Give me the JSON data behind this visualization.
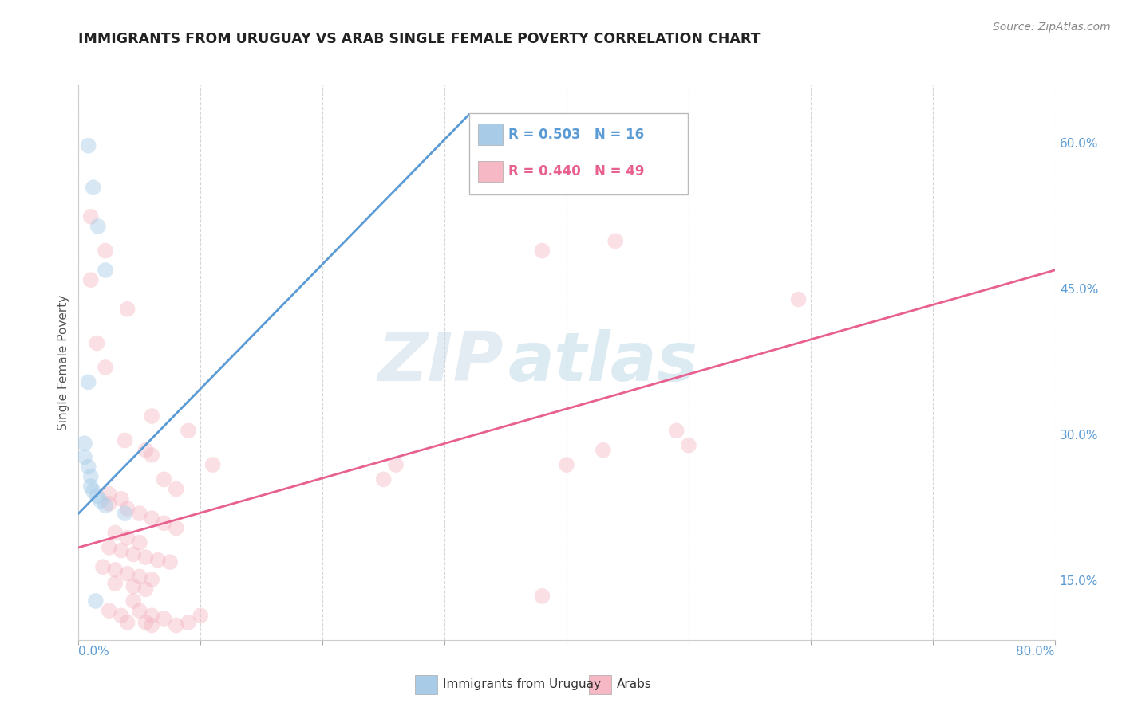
{
  "title": "IMMIGRANTS FROM URUGUAY VS ARAB SINGLE FEMALE POVERTY CORRELATION CHART",
  "source": "Source: ZipAtlas.com",
  "ylabel": "Single Female Poverty",
  "right_yticks": [
    "15.0%",
    "30.0%",
    "45.0%",
    "60.0%"
  ],
  "right_ytick_vals": [
    0.15,
    0.3,
    0.45,
    0.6
  ],
  "xlim": [
    0.0,
    0.8
  ],
  "ylim": [
    0.09,
    0.66
  ],
  "legend": {
    "series1_label": "Immigrants from Uruguay",
    "series1_R": "R = 0.503",
    "series1_N": "N = 16",
    "series2_label": "Arabs",
    "series2_R": "R = 0.440",
    "series2_N": "N = 49"
  },
  "watermark_zip": "ZIP",
  "watermark_atlas": "atlas",
  "uruguay_scatter": [
    [
      0.008,
      0.598
    ],
    [
      0.012,
      0.555
    ],
    [
      0.016,
      0.515
    ],
    [
      0.022,
      0.47
    ],
    [
      0.008,
      0.355
    ],
    [
      0.005,
      0.292
    ],
    [
      0.005,
      0.278
    ],
    [
      0.008,
      0.268
    ],
    [
      0.01,
      0.258
    ],
    [
      0.01,
      0.248
    ],
    [
      0.012,
      0.243
    ],
    [
      0.015,
      0.238
    ],
    [
      0.018,
      0.233
    ],
    [
      0.022,
      0.228
    ],
    [
      0.038,
      0.22
    ],
    [
      0.014,
      0.13
    ]
  ],
  "arab_scatter": [
    [
      0.01,
      0.525
    ],
    [
      0.022,
      0.49
    ],
    [
      0.01,
      0.46
    ],
    [
      0.04,
      0.43
    ],
    [
      0.015,
      0.395
    ],
    [
      0.022,
      0.37
    ],
    [
      0.06,
      0.32
    ],
    [
      0.09,
      0.305
    ],
    [
      0.038,
      0.295
    ],
    [
      0.055,
      0.285
    ],
    [
      0.06,
      0.28
    ],
    [
      0.11,
      0.27
    ],
    [
      0.07,
      0.255
    ],
    [
      0.08,
      0.245
    ],
    [
      0.025,
      0.24
    ],
    [
      0.035,
      0.235
    ],
    [
      0.025,
      0.23
    ],
    [
      0.04,
      0.225
    ],
    [
      0.05,
      0.22
    ],
    [
      0.06,
      0.215
    ],
    [
      0.07,
      0.21
    ],
    [
      0.08,
      0.205
    ],
    [
      0.03,
      0.2
    ],
    [
      0.04,
      0.195
    ],
    [
      0.05,
      0.19
    ],
    [
      0.025,
      0.185
    ],
    [
      0.035,
      0.182
    ],
    [
      0.045,
      0.178
    ],
    [
      0.055,
      0.175
    ],
    [
      0.065,
      0.172
    ],
    [
      0.075,
      0.17
    ],
    [
      0.02,
      0.165
    ],
    [
      0.03,
      0.162
    ],
    [
      0.04,
      0.158
    ],
    [
      0.05,
      0.155
    ],
    [
      0.06,
      0.152
    ],
    [
      0.03,
      0.148
    ],
    [
      0.045,
      0.145
    ],
    [
      0.055,
      0.142
    ],
    [
      0.59,
      0.44
    ],
    [
      0.49,
      0.305
    ],
    [
      0.43,
      0.285
    ],
    [
      0.5,
      0.29
    ],
    [
      0.38,
      0.49
    ],
    [
      0.44,
      0.5
    ],
    [
      0.4,
      0.27
    ],
    [
      0.38,
      0.135
    ],
    [
      0.26,
      0.27
    ],
    [
      0.25,
      0.255
    ]
  ],
  "arab_low_scatter": [
    [
      0.025,
      0.12
    ],
    [
      0.035,
      0.115
    ],
    [
      0.05,
      0.12
    ],
    [
      0.06,
      0.115
    ],
    [
      0.045,
      0.13
    ],
    [
      0.04,
      0.108
    ],
    [
      0.055,
      0.108
    ],
    [
      0.07,
      0.112
    ],
    [
      0.06,
      0.105
    ],
    [
      0.08,
      0.105
    ],
    [
      0.09,
      0.108
    ],
    [
      0.1,
      0.115
    ]
  ],
  "uruguay_line": {
    "x": [
      0.0,
      0.32
    ],
    "y": [
      0.22,
      0.63
    ]
  },
  "arab_line": {
    "x": [
      0.0,
      0.8
    ],
    "y": [
      0.185,
      0.47
    ]
  },
  "scatter_size": 200,
  "scatter_alpha": 0.45,
  "uruguay_color": "#a8cce8",
  "arab_color": "#f5b8c4",
  "uruguay_line_color": "#5b9bd5",
  "arab_line_color": "#e86090",
  "background_color": "#ffffff",
  "grid_color": "#cccccc",
  "title_color": "#222222",
  "right_axis_color": "#5b9bd5"
}
